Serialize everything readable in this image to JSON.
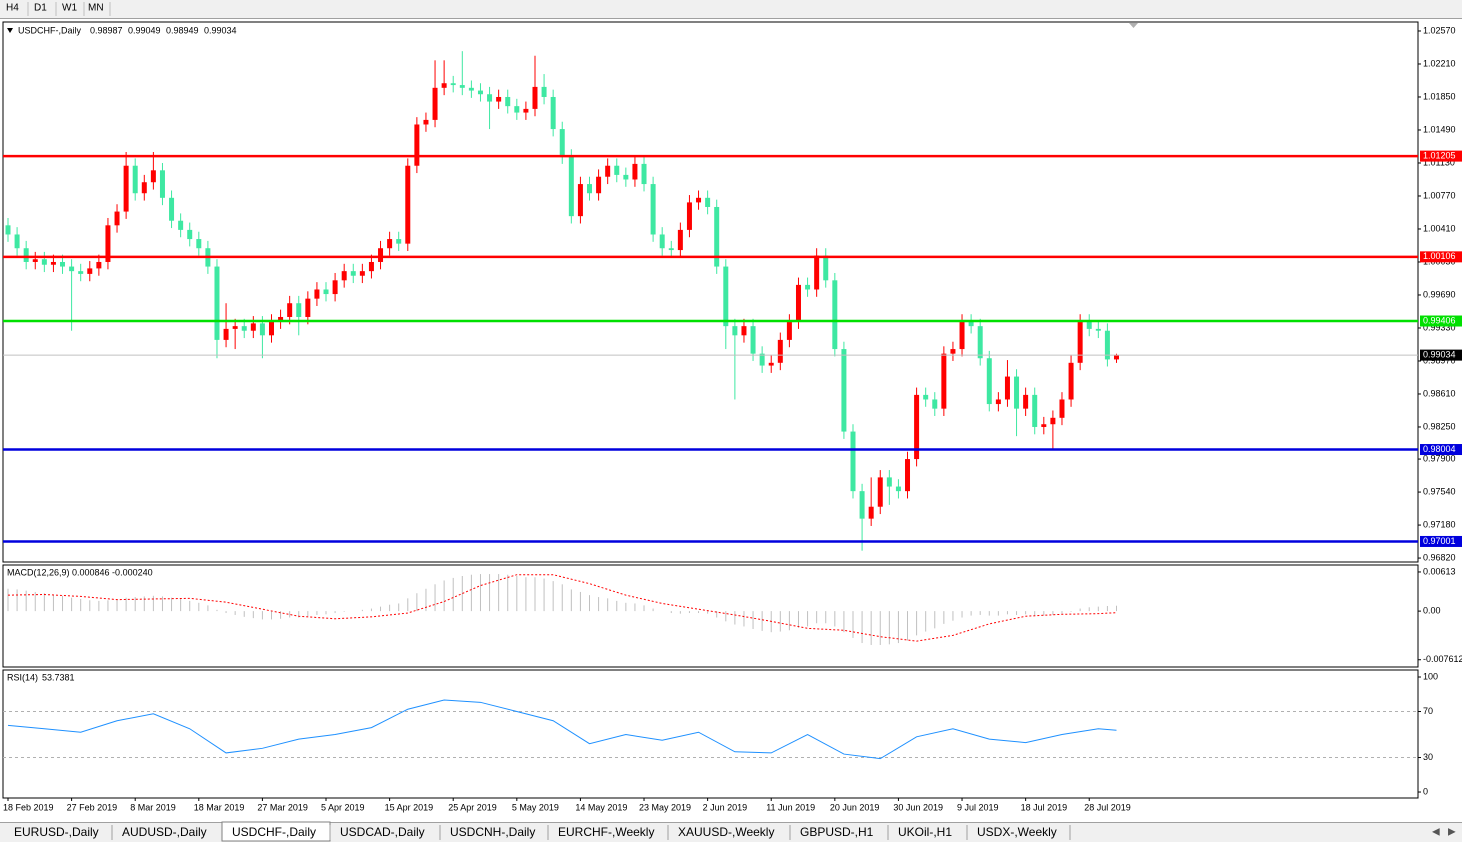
{
  "toolbar": {
    "timeframes": [
      "H4",
      "D1",
      "W1",
      "MN"
    ]
  },
  "tabs": [
    {
      "label": "EURUSD-,Daily",
      "active": false
    },
    {
      "label": "AUDUSD-,Daily",
      "active": false
    },
    {
      "label": "USDCHF-,Daily",
      "active": true
    },
    {
      "label": "USDCAD-,Daily",
      "active": false
    },
    {
      "label": "USDCNH-,Daily",
      "active": false
    },
    {
      "label": "EURCHF-,Weekly",
      "active": false
    },
    {
      "label": "XAUUSD-,Weekly",
      "active": false
    },
    {
      "label": "GBPUSD-,H1",
      "active": false
    },
    {
      "label": "UKOil-,H1",
      "active": false
    },
    {
      "label": "USDX-,Weekly",
      "active": false
    }
  ],
  "chart_data": [
    {
      "type": "candlestick",
      "title": "USDCHF-,Daily",
      "up_color": "#ff0000",
      "down_color": "#3ee8a2",
      "open": [
        1.0045,
        1.0035,
        1.002,
        1.0005,
        1.0008,
        1.0002,
        1.0005,
        1.0,
        0.9995,
        0.9992,
        0.9998,
        1.0005,
        1.0045,
        1.006,
        1.011,
        1.008,
        1.0092,
        1.0105,
        1.0075,
        1.005,
        1.004,
        1.003,
        1.002,
        1.0,
        0.992,
        0.9932,
        0.9935,
        0.993,
        0.9938,
        0.9925,
        0.994,
        0.9945,
        0.996,
        0.9945,
        0.9965,
        0.9975,
        0.997,
        0.9985,
        0.9995,
        0.999,
        0.9995,
        1.0005,
        1.002,
        1.003,
        1.0025,
        1.011,
        1.0155,
        1.016,
        1.0195,
        1.02,
        1.0198,
        1.0195,
        1.0192,
        1.0188,
        1.018,
        1.0185,
        1.0175,
        1.0168,
        1.0172,
        1.0196,
        1.0185,
        1.015,
        1.012,
        1.0055,
        1.009,
        1.008,
        1.0098,
        1.011,
        1.01,
        1.0095,
        1.0112,
        1.009,
        1.0035,
        1.002,
        1.0018,
        1.004,
        1.007,
        1.0075,
        1.0065,
        1.0,
        0.9935,
        0.9925,
        0.9935,
        0.9905,
        0.9892,
        0.9895,
        0.992,
        0.994,
        0.998,
        0.9975,
        1.0012,
        0.9985,
        0.991,
        0.982,
        0.9755,
        0.9725,
        0.9738,
        0.977,
        0.976,
        0.9755,
        0.979,
        0.986,
        0.9855,
        0.9845,
        0.9905,
        0.991,
        0.994,
        0.9935,
        0.99,
        0.985,
        0.9855,
        0.988,
        0.9845,
        0.986,
        0.9825,
        0.9828,
        0.9835,
        0.9855,
        0.9895,
        0.994,
        0.9932,
        0.993,
        0.98987
      ],
      "high": [
        1.0053,
        1.0043,
        1.0028,
        1.0016,
        1.0016,
        1.0013,
        1.0013,
        1.0008,
        1.0003,
        1.0006,
        1.0013,
        1.0053,
        1.0068,
        1.0125,
        1.0118,
        1.01,
        1.0125,
        1.0113,
        1.0083,
        1.0058,
        1.0048,
        1.0038,
        1.0028,
        1.0008,
        0.996,
        0.9943,
        0.9943,
        0.9946,
        0.9946,
        0.9948,
        0.9953,
        0.9968,
        0.9968,
        0.9973,
        0.9983,
        0.9983,
        0.9993,
        1.0003,
        1.0003,
        1.0003,
        1.0013,
        1.0028,
        1.0038,
        1.0038,
        1.0118,
        1.0163,
        1.0168,
        1.0225,
        1.0225,
        1.0208,
        1.0235,
        1.0203,
        1.02,
        1.0196,
        1.0193,
        1.0193,
        1.0183,
        1.018,
        1.023,
        1.021,
        1.0193,
        1.0158,
        1.0128,
        1.0098,
        1.0098,
        1.0106,
        1.0118,
        1.0118,
        1.0108,
        1.012,
        1.012,
        1.0098,
        1.0043,
        1.0028,
        1.0048,
        1.0078,
        1.0083,
        1.0083,
        1.0073,
        1.0008,
        0.9943,
        0.9943,
        0.9943,
        0.9913,
        0.9903,
        0.9928,
        0.9948,
        0.9988,
        0.9988,
        1.002,
        1.002,
        0.9993,
        0.9918,
        0.9828,
        0.9763,
        0.977,
        0.9778,
        0.9778,
        0.9768,
        0.9798,
        0.9868,
        0.9868,
        0.9863,
        0.9913,
        0.9918,
        0.9948,
        0.9948,
        0.9943,
        0.9908,
        0.9863,
        0.9898,
        0.9888,
        0.9868,
        0.9868,
        0.9836,
        0.9843,
        0.9863,
        0.9903,
        0.9948,
        0.9948,
        0.994,
        0.9938,
        0.99049
      ],
      "low": [
        1.0027,
        1.0012,
        0.9997,
        0.9997,
        0.9994,
        0.9994,
        0.9992,
        0.993,
        0.9984,
        0.9984,
        0.999,
        0.9997,
        1.0037,
        1.0052,
        1.0072,
        1.0072,
        1.0084,
        1.0067,
        1.0042,
        1.0032,
        1.0022,
        1.0012,
        0.9992,
        0.99,
        0.9912,
        0.991,
        0.9922,
        0.9922,
        0.99,
        0.9917,
        0.9932,
        0.9937,
        0.9925,
        0.9937,
        0.9957,
        0.9962,
        0.9962,
        0.9977,
        0.9982,
        0.9982,
        0.9987,
        0.9997,
        1.0012,
        1.0017,
        1.0017,
        1.0102,
        1.0147,
        1.0152,
        1.0187,
        1.019,
        1.0187,
        1.0184,
        1.018,
        1.015,
        1.0172,
        1.0167,
        1.016,
        1.016,
        1.0164,
        1.0177,
        1.0142,
        1.0112,
        1.0047,
        1.0047,
        1.0072,
        1.0072,
        1.009,
        1.0092,
        1.0087,
        1.0087,
        1.0082,
        1.0027,
        1.0012,
        1.001,
        1.001,
        1.0032,
        1.0062,
        1.0057,
        0.9992,
        0.991,
        0.9855,
        0.9917,
        0.9897,
        0.9884,
        0.9884,
        0.9887,
        0.9912,
        0.9932,
        0.9967,
        0.9967,
        0.9977,
        0.9902,
        0.9812,
        0.9747,
        0.969,
        0.9717,
        0.973,
        0.974,
        0.9747,
        0.9747,
        0.9782,
        0.9847,
        0.9837,
        0.9837,
        0.9897,
        0.9902,
        0.9927,
        0.9892,
        0.9842,
        0.9842,
        0.9847,
        0.9815,
        0.9837,
        0.9817,
        0.9817,
        0.98,
        0.9827,
        0.9847,
        0.9887,
        0.9924,
        0.9922,
        0.9891,
        0.98949
      ],
      "close": [
        1.0035,
        1.002,
        1.0005,
        1.0008,
        1.0002,
        1.0005,
        1.0,
        0.9995,
        0.9992,
        0.9998,
        1.0005,
        1.0045,
        1.006,
        1.011,
        1.008,
        1.0092,
        1.0105,
        1.0075,
        1.005,
        1.004,
        1.003,
        1.002,
        1.0,
        0.992,
        0.9932,
        0.9935,
        0.993,
        0.9938,
        0.9925,
        0.994,
        0.9945,
        0.996,
        0.9945,
        0.9965,
        0.9975,
        0.997,
        0.9985,
        0.9995,
        0.999,
        0.9995,
        1.0005,
        1.002,
        1.003,
        1.0025,
        1.011,
        1.0155,
        1.016,
        1.0195,
        1.02,
        1.0198,
        1.0195,
        1.0192,
        1.0188,
        1.018,
        1.0185,
        1.0175,
        1.0168,
        1.0172,
        1.0196,
        1.0185,
        1.015,
        1.012,
        1.0055,
        1.009,
        1.008,
        1.0098,
        1.011,
        1.01,
        1.0095,
        1.0112,
        1.009,
        1.0035,
        1.002,
        1.0018,
        1.004,
        1.007,
        1.0075,
        1.0065,
        1.0,
        0.9935,
        0.9925,
        0.9935,
        0.9905,
        0.9892,
        0.9895,
        0.992,
        0.994,
        0.998,
        0.9975,
        1.0012,
        0.9985,
        0.991,
        0.982,
        0.9755,
        0.9725,
        0.9738,
        0.977,
        0.976,
        0.9755,
        0.979,
        0.986,
        0.9855,
        0.9845,
        0.9905,
        0.991,
        0.994,
        0.9935,
        0.99,
        0.985,
        0.9855,
        0.988,
        0.9845,
        0.986,
        0.9825,
        0.9828,
        0.9835,
        0.9855,
        0.9895,
        0.994,
        0.9932,
        0.993,
        0.98987,
        0.99034
      ],
      "levels": [
        {
          "value": 1.01205,
          "color": "#ff0000"
        },
        {
          "value": 1.00106,
          "color": "#ff0000"
        },
        {
          "value": 0.99406,
          "color": "#00e000"
        },
        {
          "value": 0.98004,
          "color": "#0000dd"
        },
        {
          "value": 0.97001,
          "color": "#0000dd"
        }
      ],
      "ylim": [
        0.96777,
        1.02668
      ],
      "yticks": [
        {
          "value": 1.0257,
          "label": "1.02570"
        },
        {
          "value": 1.0221,
          "label": "1.02210"
        },
        {
          "value": 1.0185,
          "label": "1.01850"
        },
        {
          "value": 1.0149,
          "label": "1.01490"
        },
        {
          "value": 1.0113,
          "label": "1.01130"
        },
        {
          "value": 1.0077,
          "label": "1.00770"
        },
        {
          "value": 1.0041,
          "label": "1.00410"
        },
        {
          "value": 1.0005,
          "label": "1.00050"
        },
        {
          "value": 0.9969,
          "label": "0.99690"
        },
        {
          "value": 0.9933,
          "label": "0.99330"
        },
        {
          "value": 0.9897,
          "label": "0.98970"
        },
        {
          "value": 0.9861,
          "label": "0.98610"
        },
        {
          "value": 0.9825,
          "label": "0.98250"
        },
        {
          "value": 0.979,
          "label": "0.97900"
        },
        {
          "value": 0.9754,
          "label": "0.97540"
        },
        {
          "value": 0.9718,
          "label": "0.97180"
        },
        {
          "value": 0.9682,
          "label": "0.96820"
        }
      ],
      "xticks": [
        {
          "value": 0,
          "label": "18 Feb 2019"
        },
        {
          "value": 7,
          "label": "27 Feb 2019"
        },
        {
          "value": 14,
          "label": "8 Mar 2019"
        },
        {
          "value": 21,
          "label": "18 Mar 2019"
        },
        {
          "value": 28,
          "label": "27 Mar 2019"
        },
        {
          "value": 35,
          "label": "5 Apr 2019"
        },
        {
          "value": 42,
          "label": "15 Apr 2019"
        },
        {
          "value": 49,
          "label": "25 Apr 2019"
        },
        {
          "value": 56,
          "label": "5 May 2019"
        },
        {
          "value": 63,
          "label": "14 May 2019"
        },
        {
          "value": 70,
          "label": "23 May 2019"
        },
        {
          "value": 77,
          "label": "2 Jun 2019"
        },
        {
          "value": 84,
          "label": "11 Jun 2019"
        },
        {
          "value": 91,
          "label": "20 Jun 2019"
        },
        {
          "value": 98,
          "label": "30 Jun 2019"
        },
        {
          "value": 105,
          "label": "9 Jul 2019"
        },
        {
          "value": 112,
          "label": "18 Jul 2019"
        },
        {
          "value": 119,
          "label": "28 Jul 2019"
        }
      ]
    },
    {
      "type": "macd",
      "title": "MACD(12,26,9) 0.000846 -0.000240",
      "histogram": {
        "color": "#c0c0c0",
        "values": [
          0.0035,
          0.0034,
          0.0032,
          0.003,
          0.0028,
          0.0026,
          0.0024,
          0.0021,
          0.0019,
          0.0017,
          0.0016,
          0.0017,
          0.0018,
          0.0021,
          0.0022,
          0.0023,
          0.0024,
          0.0023,
          0.0021,
          0.0019,
          0.0016,
          0.0013,
          0.0009,
          0.0002,
          -0.0003,
          -0.0006,
          -0.0009,
          -0.0011,
          -0.0013,
          -0.0013,
          -0.0012,
          -0.001,
          -0.001,
          -0.0008,
          -0.0006,
          -0.0005,
          -0.0003,
          -0.0001,
          0,
          0.0002,
          0.0004,
          0.0007,
          0.001,
          0.0012,
          0.002,
          0.0028,
          0.0035,
          0.0042,
          0.0048,
          0.0052,
          0.0055,
          0.0057,
          0.0058,
          0.0058,
          0.0058,
          0.0057,
          0.0055,
          0.0053,
          0.0053,
          0.0051,
          0.0047,
          0.0042,
          0.0034,
          0.003,
          0.0025,
          0.0022,
          0.002,
          0.0016,
          0.0013,
          0.0012,
          0.0009,
          0.0004,
          0,
          -0.0003,
          -0.0004,
          -0.0003,
          -0.0003,
          -0.0004,
          -0.001,
          -0.0016,
          -0.0021,
          -0.0024,
          -0.0028,
          -0.0031,
          -0.0033,
          -0.0032,
          -0.003,
          -0.0026,
          -0.0024,
          -0.0019,
          -0.0019,
          -0.0024,
          -0.0033,
          -0.0042,
          -0.005,
          -0.0053,
          -0.0053,
          -0.0052,
          -0.005,
          -0.0046,
          -0.0038,
          -0.0032,
          -0.0027,
          -0.002,
          -0.0015,
          -0.001,
          -0.0007,
          -0.0006,
          -0.0007,
          -0.0007,
          -0.0005,
          -0.0006,
          -0.0005,
          -0.0007,
          -0.0007,
          -0.0006,
          -0.0004,
          -0.0001,
          0.0004,
          0.0006,
          0.0007,
          0.0008,
          0.000846
        ]
      },
      "signal": {
        "color": "#ff0000",
        "x": [
          0,
          4,
          8,
          12,
          16,
          20,
          24,
          28,
          32,
          36,
          40,
          44,
          48,
          52,
          56,
          60,
          64,
          68,
          72,
          76,
          80,
          84,
          88,
          92,
          96,
          100,
          104,
          108,
          112,
          116,
          120,
          122
        ],
        "values": [
          0.0025,
          0.0026,
          0.0023,
          0.0018,
          0.0019,
          0.002,
          0.0014,
          0.0003,
          -0.0008,
          -0.0012,
          -0.0009,
          -0.0003,
          0.0015,
          0.004,
          0.0057,
          0.0057,
          0.0043,
          0.0025,
          0.0012,
          0.0003,
          -0.0006,
          -0.0016,
          -0.0027,
          -0.003,
          -0.004,
          -0.0047,
          -0.0038,
          -0.002,
          -0.0008,
          -0.0005,
          -0.0004,
          -0.00024
        ]
      },
      "ylim": [
        -0.00875,
        0.00722
      ],
      "yticks": [
        0.00613,
        {
          "value": 0,
          "label": "0.00"
        },
        -0.007612
      ]
    },
    {
      "type": "line",
      "title": "RSI(14)",
      "color": "#1e90ff",
      "x": [
        0,
        4,
        8,
        12,
        16,
        20,
        24,
        28,
        32,
        36,
        40,
        44,
        48,
        52,
        56,
        60,
        64,
        68,
        72,
        76,
        80,
        84,
        88,
        92,
        96,
        100,
        104,
        108,
        112,
        116,
        120,
        122
      ],
      "values": [
        58,
        55,
        52,
        62,
        68,
        55,
        34,
        38,
        46,
        50,
        56,
        72,
        80,
        78,
        70,
        62,
        42,
        50,
        45,
        52,
        35,
        34,
        50,
        33,
        29,
        48,
        55,
        46,
        43,
        50,
        55,
        53.7381
      ],
      "levels": [
        70,
        30
      ],
      "ylim": [
        -5.2,
        106.1
      ],
      "yticks": [
        100,
        70,
        30,
        0
      ]
    }
  ]
}
